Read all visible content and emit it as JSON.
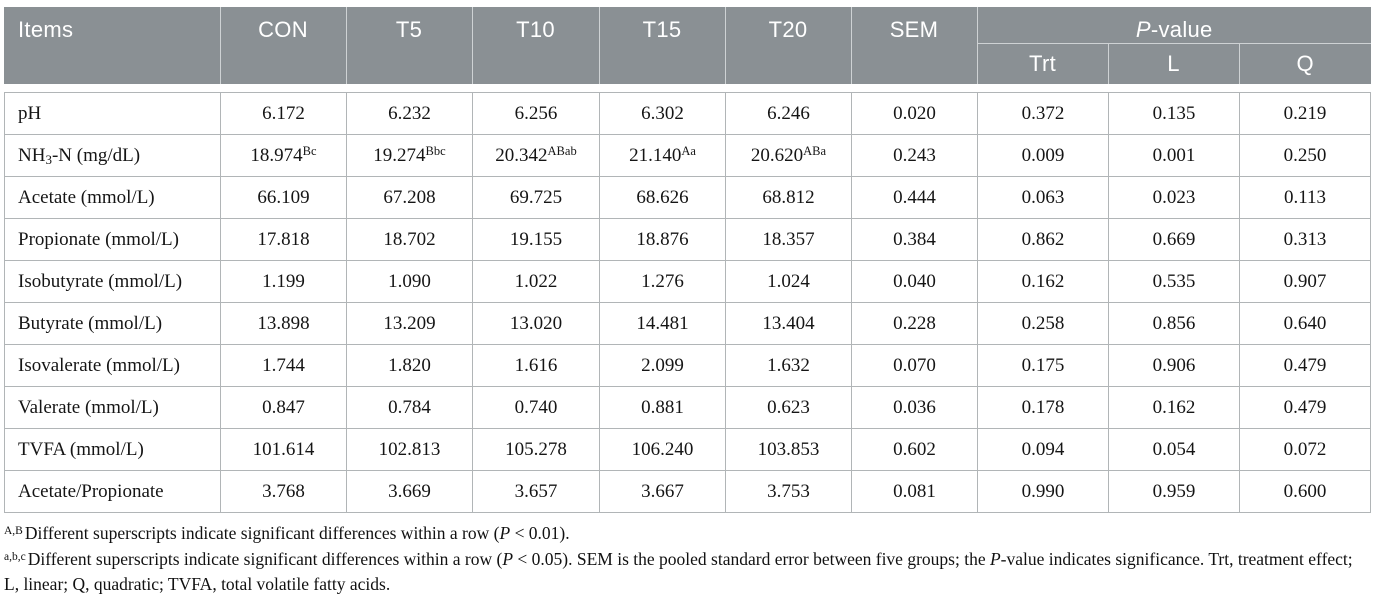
{
  "header": {
    "items_label": "Items",
    "group_columns": [
      "CON",
      "T5",
      "T10",
      "T15",
      "T20",
      "SEM"
    ],
    "pvalue_label": "P-value",
    "pvalue_sub_columns": [
      "Trt",
      "L",
      "Q"
    ]
  },
  "table": {
    "rows": [
      {
        "item": "pH",
        "cells": [
          "6.172",
          "6.232",
          "6.256",
          "6.302",
          "6.246",
          "0.020",
          "0.372",
          "0.135",
          "0.219"
        ]
      },
      {
        "item": "NH₃-N (mg/dL)",
        "cells": [
          "18.974^Bc",
          "19.274^Bbc",
          "20.342^ABab",
          "21.140^Aa",
          "20.620^ABa",
          "0.243",
          "0.009",
          "0.001",
          "0.250"
        ]
      },
      {
        "item": "Acetate (mmol/L)",
        "cells": [
          "66.109",
          "67.208",
          "69.725",
          "68.626",
          "68.812",
          "0.444",
          "0.063",
          "0.023",
          "0.113"
        ]
      },
      {
        "item": "Propionate (mmol/L)",
        "cells": [
          "17.818",
          "18.702",
          "19.155",
          "18.876",
          "18.357",
          "0.384",
          "0.862",
          "0.669",
          "0.313"
        ]
      },
      {
        "item": "Isobutyrate (mmol/L)",
        "cells": [
          "1.199",
          "1.090",
          "1.022",
          "1.276",
          "1.024",
          "0.040",
          "0.162",
          "0.535",
          "0.907"
        ]
      },
      {
        "item": "Butyrate (mmol/L)",
        "cells": [
          "13.898",
          "13.209",
          "13.020",
          "14.481",
          "13.404",
          "0.228",
          "0.258",
          "0.856",
          "0.640"
        ]
      },
      {
        "item": "Isovalerate (mmol/L)",
        "cells": [
          "1.744",
          "1.820",
          "1.616",
          "2.099",
          "1.632",
          "0.070",
          "0.175",
          "0.906",
          "0.479"
        ]
      },
      {
        "item": "Valerate (mmol/L)",
        "cells": [
          "0.847",
          "0.784",
          "0.740",
          "0.881",
          "0.623",
          "0.036",
          "0.178",
          "0.162",
          "0.479"
        ]
      },
      {
        "item": "TVFA (mmol/L)",
        "cells": [
          "101.614",
          "102.813",
          "105.278",
          "106.240",
          "103.853",
          "0.602",
          "0.094",
          "0.054",
          "0.072"
        ]
      },
      {
        "item": "Acetate/Propionate",
        "cells": [
          "3.768",
          "3.669",
          "3.657",
          "3.667",
          "3.753",
          "0.081",
          "0.990",
          "0.959",
          "0.600"
        ]
      }
    ]
  },
  "footnotes": [
    {
      "sup": "A,B",
      "text": "Different superscripts indicate significant differences within a row (P < 0.01)."
    },
    {
      "sup": "a,b,c",
      "text": "Different superscripts indicate significant differences within a row (P < 0.05). SEM is the pooled standard error between five groups; the P-value indicates significance. Trt, treatment effect; L, linear; Q, quadratic; TVFA, total volatile fatty acids."
    }
  ],
  "colors": {
    "header_bg": "#8a9094",
    "header_text": "#ffffff",
    "header_divider": "#ced2d4",
    "body_border": "#b1b5b7",
    "body_text": "#151515"
  }
}
